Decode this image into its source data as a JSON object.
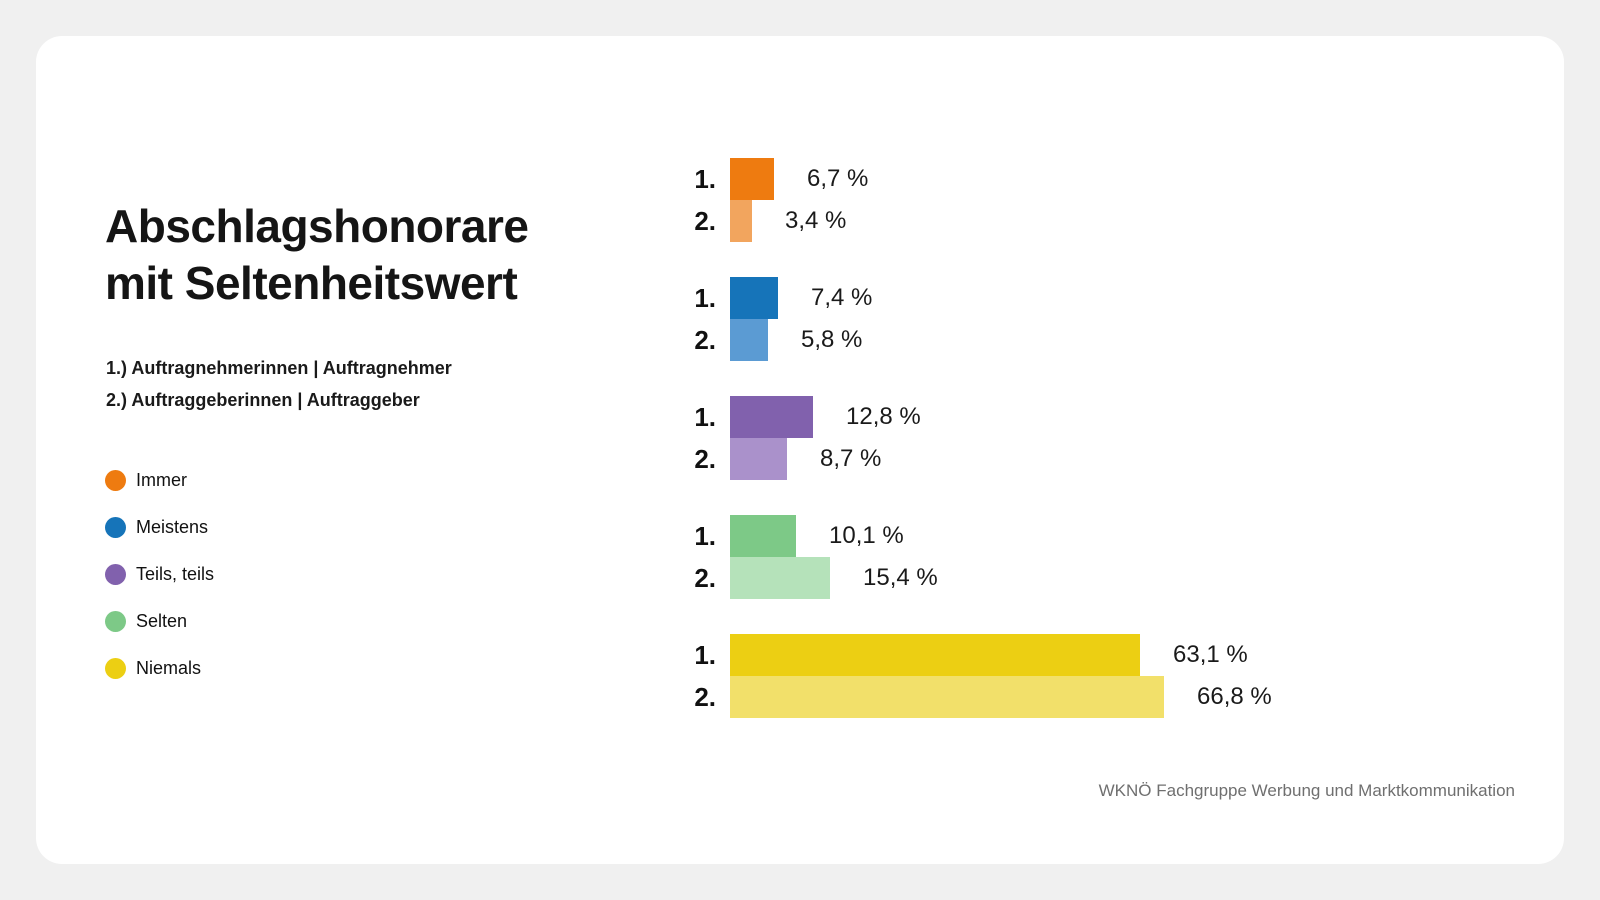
{
  "page": {
    "background_color": "#F0F0F0",
    "card_color": "#FFFFFF"
  },
  "title": {
    "line1": "Abschlagshonorare",
    "line2": "mit Seltenheitswert"
  },
  "subtitle": {
    "line1": "1.) Auftragnehmerinnen | Auftragnehmer",
    "line2": "2.) Auftraggeberinnen | Auftraggeber"
  },
  "legend": [
    {
      "label": "Immer",
      "color": "#EE7B10"
    },
    {
      "label": "Meistens",
      "color": "#1674B9"
    },
    {
      "label": "Teils, teils",
      "color": "#8161AD"
    },
    {
      "label": "Selten",
      "color": "#7DC987"
    },
    {
      "label": "Niemals",
      "color": "#ECCF13"
    }
  ],
  "footer": "WKNÖ Fachgruppe Werbung und Marktkommunikation",
  "chart_data": {
    "type": "bar",
    "orientation": "horizontal",
    "title": "Abschlagshonorare mit Seltenheitswert",
    "categories": [
      "Immer",
      "Meistens",
      "Teils, teils",
      "Selten",
      "Niemals"
    ],
    "series": [
      {
        "name": "1.) Auftragnehmerinnen | Auftragnehmer",
        "values": [
          6.7,
          7.4,
          12.8,
          10.1,
          63.1
        ]
      },
      {
        "name": "2.) Auftraggeberinnen | Auftraggeber",
        "values": [
          3.4,
          5.8,
          8.7,
          15.4,
          66.8
        ]
      }
    ],
    "value_unit": "%",
    "xlim": [
      0,
      100
    ],
    "axes_visible": false,
    "gridlines": false,
    "legend_position": "left",
    "groups": [
      {
        "category": "Immer",
        "bars": [
          {
            "rank": "1.",
            "value": 6.7,
            "label": "6,7 %",
            "color": "#EE7B10"
          },
          {
            "rank": "2.",
            "value": 3.4,
            "label": "3,4 %",
            "color": "#F2A55E"
          }
        ]
      },
      {
        "category": "Meistens",
        "bars": [
          {
            "rank": "1.",
            "value": 7.4,
            "label": "7,4 %",
            "color": "#1674B9"
          },
          {
            "rank": "2.",
            "value": 5.8,
            "label": "5,8 %",
            "color": "#5B9BD3"
          }
        ]
      },
      {
        "category": "Teils, teils",
        "bars": [
          {
            "rank": "1.",
            "value": 12.8,
            "label": "12,8 %",
            "color": "#8161AD"
          },
          {
            "rank": "2.",
            "value": 8.7,
            "label": "8,7 %",
            "color": "#AA91CB"
          }
        ]
      },
      {
        "category": "Selten",
        "bars": [
          {
            "rank": "1.",
            "value": 10.1,
            "label": "10,1 %",
            "color": "#7DC987"
          },
          {
            "rank": "2.",
            "value": 15.4,
            "label": "15,4 %",
            "color": "#B5E2BA"
          }
        ]
      },
      {
        "category": "Niemals",
        "bars": [
          {
            "rank": "1.",
            "value": 63.1,
            "label": "63,1 %",
            "color": "#ECCF13"
          },
          {
            "rank": "2.",
            "value": 66.8,
            "label": "66,8 %",
            "color": "#F2E06A"
          }
        ]
      }
    ]
  }
}
